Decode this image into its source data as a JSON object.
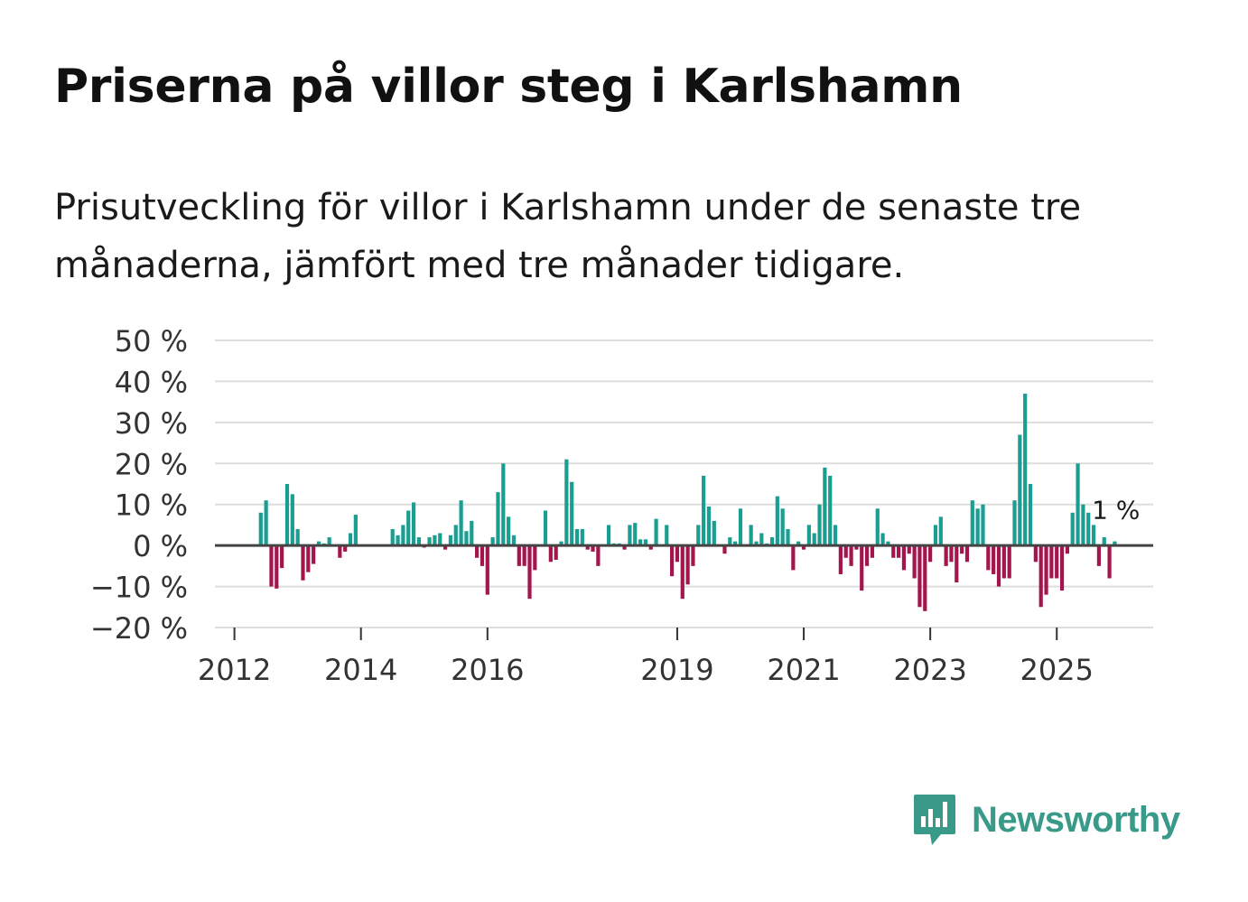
{
  "header": {
    "title": "Priserna på villor steg i Karlshamn",
    "subtitle": "Prisutveckling för villor i Karlshamn under de senaste tre månaderna, jämfört med tre månader tidigare."
  },
  "brand": {
    "name": "Newsworthy",
    "icon": "newsworthy-logo-icon",
    "color": "#3a9a8a"
  },
  "colors": {
    "positive": "#1a9e91",
    "negative": "#a3154c",
    "grid": "#dddddd",
    "zero_line": "#444444"
  },
  "chart_data": {
    "type": "bar",
    "title": "Priserna på villor steg i Karlshamn",
    "xlabel": "",
    "ylabel": "",
    "ylim": [
      -20,
      50
    ],
    "y_ticks": [
      -20,
      -10,
      0,
      10,
      20,
      30,
      40,
      50
    ],
    "y_tick_labels": [
      "−20 %",
      "−10 %",
      "0 %",
      "10 %",
      "20 %",
      "30 %",
      "40 %",
      "50 %"
    ],
    "x_ticks": [
      2012,
      2014,
      2016,
      2019,
      2021,
      2023,
      2025
    ],
    "x_tick_labels": [
      "2012",
      "2014",
      "2016",
      "2019",
      "2021",
      "2023",
      "2025"
    ],
    "grid": true,
    "x_start": 2012.0,
    "x_step": 0.08333,
    "series": [
      {
        "name": "Prisutveckling (%)",
        "values": [
          null,
          null,
          null,
          null,
          null,
          8,
          11,
          -10,
          -10.5,
          -5.5,
          15,
          12.5,
          4,
          -8.5,
          -6.5,
          -4.5,
          1,
          0.5,
          2,
          0,
          -3,
          -1.5,
          3,
          7.5,
          null,
          null,
          null,
          null,
          null,
          null,
          4,
          2.5,
          5,
          8.5,
          10.5,
          2,
          -0.5,
          2,
          2.5,
          3,
          -1,
          2.5,
          5,
          11,
          3.5,
          6,
          -3,
          -5,
          -12,
          2,
          13,
          20,
          7,
          2.5,
          -5,
          -5,
          -13,
          -6,
          null,
          8.5,
          -4,
          -3.5,
          1,
          21,
          15.5,
          4,
          4,
          -1,
          -1.5,
          -5,
          null,
          5,
          0.5,
          0.5,
          -1,
          5,
          5.5,
          1.5,
          1.5,
          -1,
          6.5,
          null,
          5,
          -7.5,
          -4,
          -13,
          -9.5,
          -5,
          5,
          17,
          9.5,
          6,
          null,
          -2,
          2,
          1,
          9,
          null,
          5,
          1,
          3,
          0.5,
          2,
          12,
          9,
          4,
          -6,
          1,
          -1,
          5,
          3,
          10,
          19,
          17,
          5,
          -7,
          -3,
          -5,
          -1,
          -11,
          -5,
          -3,
          9,
          3,
          1,
          -3,
          -3,
          -6,
          -2,
          -8,
          -15,
          -16,
          -4,
          5,
          7,
          -5,
          -4,
          -9,
          -2,
          -4,
          11,
          9,
          10,
          -6,
          -7,
          -10,
          -8,
          -8,
          11,
          27,
          37,
          15,
          -4,
          -15,
          -12,
          -8,
          -8,
          -11,
          -2,
          8,
          20,
          10,
          8,
          5,
          -5,
          2,
          -8,
          1
        ]
      }
    ],
    "annotation": {
      "label": "1 %",
      "target": "last"
    }
  }
}
